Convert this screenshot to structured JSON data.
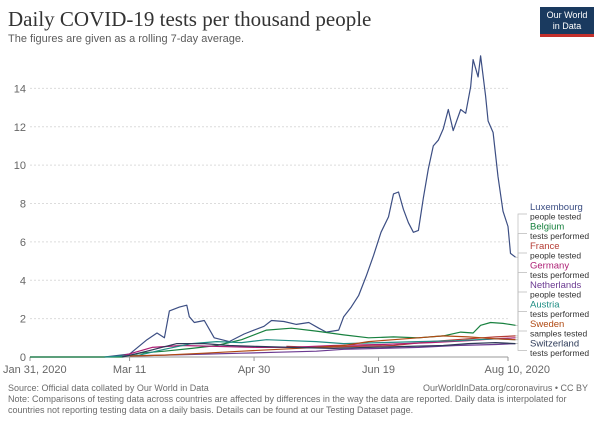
{
  "header": {
    "title": "Daily COVID-19 tests per thousand people",
    "subtitle": "The figures are given as a rolling 7-day average."
  },
  "logo": {
    "line1": "Our World",
    "line2": "in Data"
  },
  "footer": {
    "source": "Source: Official data collated by Our World in Data",
    "license": "OurWorldInData.org/coronavirus • CC BY",
    "note": "Note: Comparisons of testing data across countries are affected by differences in the way the data are reported. Daily data is interpolated for countries not reporting testing data on a daily basis. Details can be found at our Testing Dataset page."
  },
  "chart_data": {
    "type": "line",
    "title": "Daily COVID-19 tests per thousand people",
    "subtitle": "The figures are given as a rolling 7-day average.",
    "x_axis": {
      "type": "date",
      "range": [
        "2020-01-31",
        "2020-08-10"
      ],
      "tick_labels": [
        "Jan 31, 2020",
        "Mar 11",
        "Apr 30",
        "Jun 19",
        "Aug 10, 2020"
      ],
      "tick_dates": [
        "2020-01-31",
        "2020-03-11",
        "2020-04-30",
        "2020-06-19",
        "2020-08-10"
      ]
    },
    "y_axis": {
      "range": [
        0,
        16
      ],
      "ticks": [
        0,
        2,
        4,
        6,
        8,
        10,
        12,
        14
      ]
    },
    "grid": "horizontal dotted",
    "legend_placement": "right",
    "series": [
      {
        "name": "Luxembourg",
        "unit": "people tested",
        "color": "#3c4e83",
        "points": [
          [
            "2020-01-31",
            0
          ],
          [
            "2020-03-01",
            0
          ],
          [
            "2020-03-11",
            0.15
          ],
          [
            "2020-03-18",
            0.9
          ],
          [
            "2020-03-22",
            1.25
          ],
          [
            "2020-03-25",
            1.0
          ],
          [
            "2020-03-27",
            2.4
          ],
          [
            "2020-03-31",
            2.6
          ],
          [
            "2020-04-03",
            2.7
          ],
          [
            "2020-04-04",
            2.1
          ],
          [
            "2020-04-06",
            1.8
          ],
          [
            "2020-04-10",
            1.9
          ],
          [
            "2020-04-14",
            1.0
          ],
          [
            "2020-04-20",
            0.8
          ],
          [
            "2020-04-26",
            1.2
          ],
          [
            "2020-04-30",
            1.4
          ],
          [
            "2020-05-04",
            1.6
          ],
          [
            "2020-05-07",
            1.9
          ],
          [
            "2020-05-12",
            1.85
          ],
          [
            "2020-05-17",
            1.7
          ],
          [
            "2020-05-22",
            1.8
          ],
          [
            "2020-05-26",
            1.5
          ],
          [
            "2020-05-29",
            1.3
          ],
          [
            "2020-06-03",
            1.4
          ],
          [
            "2020-06-05",
            2.1
          ],
          [
            "2020-06-08",
            2.6
          ],
          [
            "2020-06-11",
            3.2
          ],
          [
            "2020-06-14",
            4.2
          ],
          [
            "2020-06-17",
            5.3
          ],
          [
            "2020-06-20",
            6.5
          ],
          [
            "2020-06-23",
            7.3
          ],
          [
            "2020-06-25",
            8.5
          ],
          [
            "2020-06-27",
            8.6
          ],
          [
            "2020-06-29",
            7.7
          ],
          [
            "2020-07-01",
            7.0
          ],
          [
            "2020-07-03",
            6.5
          ],
          [
            "2020-07-05",
            6.6
          ],
          [
            "2020-07-07",
            8.3
          ],
          [
            "2020-07-09",
            9.8
          ],
          [
            "2020-07-11",
            11.0
          ],
          [
            "2020-07-13",
            11.3
          ],
          [
            "2020-07-15",
            11.9
          ],
          [
            "2020-07-17",
            12.9
          ],
          [
            "2020-07-19",
            11.8
          ],
          [
            "2020-07-22",
            12.9
          ],
          [
            "2020-07-24",
            12.7
          ],
          [
            "2020-07-26",
            14.1
          ],
          [
            "2020-07-27",
            15.5
          ],
          [
            "2020-07-29",
            14.6
          ],
          [
            "2020-07-30",
            15.7
          ],
          [
            "2020-08-01",
            13.6
          ],
          [
            "2020-08-02",
            12.3
          ],
          [
            "2020-08-04",
            11.7
          ],
          [
            "2020-08-06",
            9.4
          ],
          [
            "2020-08-08",
            7.6
          ],
          [
            "2020-08-10",
            6.8
          ],
          [
            "2020-08-11",
            5.4
          ],
          [
            "2020-08-13",
            5.2
          ]
        ]
      },
      {
        "name": "Belgium",
        "unit": "tests performed",
        "color": "#18813f",
        "points": [
          [
            "2020-01-31",
            0
          ],
          [
            "2020-03-08",
            0
          ],
          [
            "2020-03-15",
            0.2
          ],
          [
            "2020-03-25",
            0.3
          ],
          [
            "2020-04-05",
            0.45
          ],
          [
            "2020-04-15",
            0.6
          ],
          [
            "2020-04-25",
            0.9
          ],
          [
            "2020-05-05",
            1.4
          ],
          [
            "2020-05-15",
            1.5
          ],
          [
            "2020-05-25",
            1.35
          ],
          [
            "2020-06-05",
            1.15
          ],
          [
            "2020-06-15",
            1.0
          ],
          [
            "2020-06-25",
            1.05
          ],
          [
            "2020-07-05",
            1.0
          ],
          [
            "2020-07-15",
            1.1
          ],
          [
            "2020-07-22",
            1.3
          ],
          [
            "2020-07-27",
            1.25
          ],
          [
            "2020-07-30",
            1.65
          ],
          [
            "2020-08-03",
            1.8
          ],
          [
            "2020-08-08",
            1.75
          ],
          [
            "2020-08-13",
            1.65
          ]
        ]
      },
      {
        "name": "France",
        "unit": "people tested",
        "color": "#b53d35",
        "points": [
          [
            "2020-05-13",
            0.55
          ],
          [
            "2020-05-25",
            0.5
          ],
          [
            "2020-06-10",
            0.55
          ],
          [
            "2020-06-25",
            0.6
          ],
          [
            "2020-07-10",
            0.8
          ],
          [
            "2020-07-25",
            0.95
          ],
          [
            "2020-08-05",
            1.05
          ],
          [
            "2020-08-13",
            1.1
          ]
        ]
      },
      {
        "name": "Germany",
        "unit": "tests performed",
        "color": "#ad1e74",
        "points": [
          [
            "2020-03-08",
            0.05
          ],
          [
            "2020-03-20",
            0.5
          ],
          [
            "2020-04-01",
            0.6
          ],
          [
            "2020-04-15",
            0.55
          ],
          [
            "2020-05-01",
            0.5
          ],
          [
            "2020-05-15",
            0.5
          ],
          [
            "2020-06-01",
            0.6
          ],
          [
            "2020-06-20",
            0.65
          ],
          [
            "2020-07-10",
            0.75
          ],
          [
            "2020-07-25",
            0.85
          ],
          [
            "2020-08-05",
            0.95
          ],
          [
            "2020-08-13",
            1.0
          ]
        ]
      },
      {
        "name": "Netherlands",
        "unit": "people tested",
        "color": "#6b3a91",
        "points": [
          [
            "2020-03-11",
            0.05
          ],
          [
            "2020-03-25",
            0.1
          ],
          [
            "2020-04-10",
            0.15
          ],
          [
            "2020-04-25",
            0.2
          ],
          [
            "2020-05-10",
            0.25
          ],
          [
            "2020-05-25",
            0.3
          ],
          [
            "2020-06-05",
            0.4
          ],
          [
            "2020-06-20",
            0.45
          ],
          [
            "2020-07-05",
            0.5
          ],
          [
            "2020-07-20",
            0.6
          ],
          [
            "2020-08-05",
            0.65
          ],
          [
            "2020-08-13",
            0.7
          ]
        ]
      },
      {
        "name": "Austria",
        "unit": "tests performed",
        "color": "#208e84",
        "points": [
          [
            "2020-03-01",
            0
          ],
          [
            "2020-03-15",
            0.1
          ],
          [
            "2020-03-25",
            0.4
          ],
          [
            "2020-04-05",
            0.7
          ],
          [
            "2020-04-15",
            0.8
          ],
          [
            "2020-04-25",
            0.75
          ],
          [
            "2020-05-05",
            0.9
          ],
          [
            "2020-05-15",
            0.85
          ],
          [
            "2020-05-25",
            0.8
          ],
          [
            "2020-06-05",
            0.7
          ],
          [
            "2020-06-20",
            0.75
          ],
          [
            "2020-07-05",
            0.8
          ],
          [
            "2020-07-20",
            0.85
          ],
          [
            "2020-08-05",
            0.95
          ],
          [
            "2020-08-13",
            0.9
          ]
        ]
      },
      {
        "name": "Sweden",
        "unit": "samples tested",
        "color": "#b04a13",
        "points": [
          [
            "2020-03-11",
            0.05
          ],
          [
            "2020-03-25",
            0.1
          ],
          [
            "2020-04-10",
            0.2
          ],
          [
            "2020-04-25",
            0.3
          ],
          [
            "2020-05-10",
            0.4
          ],
          [
            "2020-05-25",
            0.5
          ],
          [
            "2020-06-05",
            0.6
          ],
          [
            "2020-06-15",
            0.8
          ],
          [
            "2020-06-25",
            0.9
          ],
          [
            "2020-07-05",
            1.0
          ],
          [
            "2020-07-15",
            1.1
          ],
          [
            "2020-07-25",
            1.05
          ],
          [
            "2020-08-05",
            0.95
          ],
          [
            "2020-08-13",
            0.9
          ]
        ]
      },
      {
        "name": "Switzerland",
        "unit": "tests performed",
        "color": "#2d3a58",
        "points": [
          [
            "2020-03-08",
            0
          ],
          [
            "2020-03-18",
            0.3
          ],
          [
            "2020-03-30",
            0.7
          ],
          [
            "2020-04-10",
            0.7
          ],
          [
            "2020-04-20",
            0.6
          ],
          [
            "2020-05-01",
            0.55
          ],
          [
            "2020-05-15",
            0.5
          ],
          [
            "2020-06-01",
            0.45
          ],
          [
            "2020-06-15",
            0.5
          ],
          [
            "2020-07-01",
            0.55
          ],
          [
            "2020-07-15",
            0.6
          ],
          [
            "2020-07-25",
            0.7
          ],
          [
            "2020-08-05",
            0.75
          ],
          [
            "2020-08-13",
            0.7
          ]
        ]
      }
    ],
    "source": "Source: Official data collated by Our World in Data",
    "license": "OurWorldInData.org/coronavirus • CC BY"
  }
}
